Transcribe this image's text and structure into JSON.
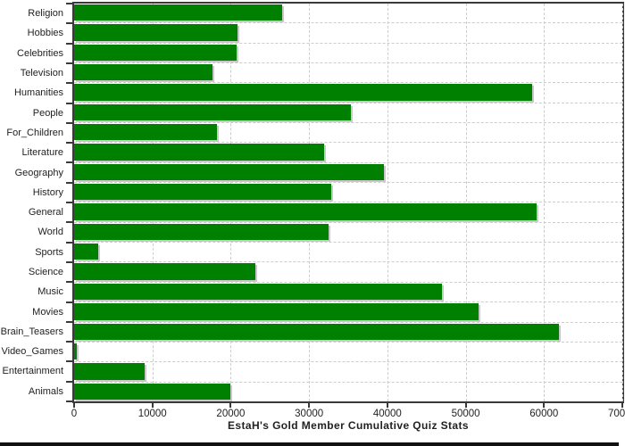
{
  "chart_data": {
    "type": "bar",
    "orientation": "horizontal",
    "title": "EstaH's Gold Member Cumulative Quiz Stats",
    "categories": [
      "Religion",
      "Hobbies",
      "Celebrities",
      "Television",
      "Humanities",
      "People",
      "For_Children",
      "Literature",
      "Geography",
      "History",
      "General",
      "World",
      "Sports",
      "Science",
      "Music",
      "Movies",
      "Brain_Teasers",
      "Video_Games",
      "Entertainment",
      "Animals"
    ],
    "values": [
      26600,
      20900,
      20800,
      17700,
      58500,
      35300,
      18200,
      31900,
      39600,
      32800,
      59000,
      32500,
      3100,
      23200,
      47000,
      51600,
      61900,
      350,
      9000,
      20000
    ],
    "xlabel": "",
    "ylabel": "",
    "xlim": [
      0,
      70000
    ],
    "x_ticks": [
      0,
      10000,
      20000,
      30000,
      40000,
      50000,
      60000,
      70000
    ],
    "x_tick_labels": [
      "0",
      "10000",
      "20000",
      "30000",
      "40000",
      "50000",
      "60000",
      "70000"
    ],
    "grid": true,
    "legend_position": "none",
    "bar_color": "#008000",
    "bar_shadow_color": "#c9c9c9",
    "gridline_color": "#cccccc",
    "axis_color": "#3a3a3a",
    "text_color": "#222222",
    "background_color": "#ffffff"
  }
}
